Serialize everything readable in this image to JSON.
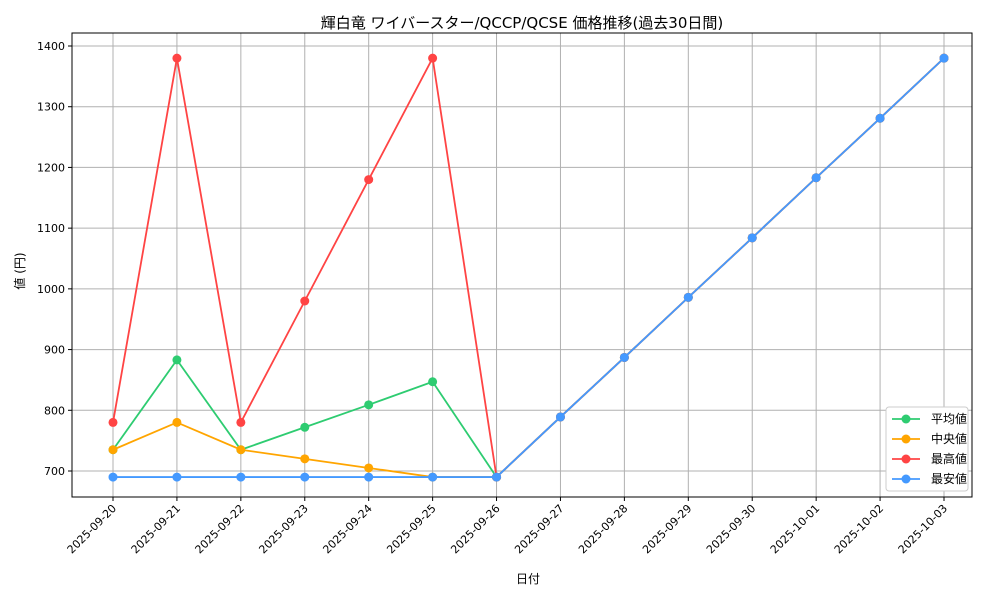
{
  "chart_data": {
    "type": "line",
    "title": "輝白竜 ワイバースター/QCCP/QCSE 価格推移(過去30日間)",
    "xlabel": "日付",
    "ylabel": "値 (円)",
    "ylim": [
      655,
      1425
    ],
    "yticks": [
      700,
      800,
      900,
      1000,
      1100,
      1200,
      1300,
      1400
    ],
    "grid": true,
    "legend_position": "bottom-right",
    "categories": [
      "2025-09-20",
      "2025-09-21",
      "2025-09-22",
      "2025-09-23",
      "2025-09-24",
      "2025-09-25",
      "2025-09-26",
      "2025-09-27",
      "2025-09-28",
      "2025-09-29",
      "2025-09-30",
      "2025-10-01",
      "2025-10-02",
      "2025-10-03"
    ],
    "series": [
      {
        "name": "平均値",
        "color": "#2ecc71",
        "values": [
          735,
          883,
          735,
          772,
          809,
          847,
          690,
          789,
          887,
          986,
          1084,
          1183,
          1281,
          1380
        ]
      },
      {
        "name": "中央値",
        "color": "#ffa500",
        "values": [
          735,
          780,
          735,
          720,
          705,
          690,
          690,
          789,
          887,
          986,
          1084,
          1183,
          1281,
          1380
        ]
      },
      {
        "name": "最高値",
        "color": "#ff4444",
        "values": [
          780,
          1380,
          780,
          980,
          1180,
          1380,
          690,
          789,
          887,
          986,
          1084,
          1183,
          1281,
          1380
        ]
      },
      {
        "name": "最安値",
        "color": "#4499ff",
        "values": [
          690,
          690,
          690,
          690,
          690,
          690,
          690,
          789,
          887,
          986,
          1084,
          1183,
          1281,
          1380
        ]
      }
    ]
  }
}
